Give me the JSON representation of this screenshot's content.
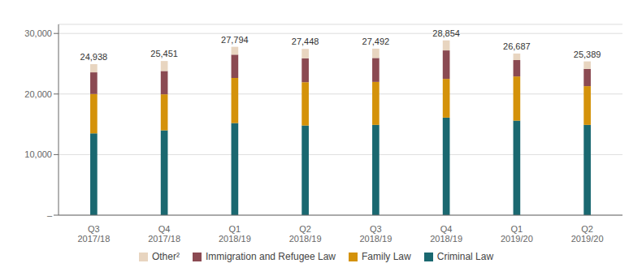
{
  "chart_data": {
    "type": "bar",
    "stacked": true,
    "categories": [
      "Q3\n2017/18",
      "Q4\n2017/18",
      "Q1\n2018/19",
      "Q2\n2018/19",
      "Q3\n2018/19",
      "Q4\n2018/19",
      "Q1\n2019/20",
      "Q2\n2019/20"
    ],
    "series": [
      {
        "name": "Criminal Law",
        "color": "#1a6870",
        "values": [
          13500,
          14000,
          15200,
          14800,
          14900,
          16100,
          15600,
          14900
        ]
      },
      {
        "name": "Family Law",
        "color": "#d4920a",
        "values": [
          6500,
          5950,
          7450,
          7150,
          7100,
          6400,
          7300,
          6400
        ]
      },
      {
        "name": "Immigration and Refugee Law",
        "color": "#8b4a52",
        "values": [
          3580,
          3850,
          3850,
          3950,
          3950,
          4700,
          2700,
          2850
        ]
      },
      {
        "name": "Other²",
        "color": "#e8d5c0",
        "values": [
          1358,
          1651,
          1294,
          1548,
          1542,
          1654,
          1087,
          1239
        ]
      }
    ],
    "totals": {
      "values": [
        24938,
        25451,
        27794,
        27448,
        27492,
        28854,
        26687,
        25389
      ],
      "value_labels": [
        "24,938",
        "25,451",
        "27,794",
        "27,448",
        "27,492",
        "28,854",
        "26,687",
        "25,389"
      ]
    },
    "ylim": [
      0,
      31500
    ],
    "yticks": [
      {
        "value": 0,
        "label": "–"
      },
      {
        "value": 10000,
        "label": "10,000"
      },
      {
        "value": 20000,
        "label": "20,000"
      },
      {
        "value": 30000,
        "label": "30,000"
      }
    ],
    "grid": true,
    "legend": "bottom"
  }
}
